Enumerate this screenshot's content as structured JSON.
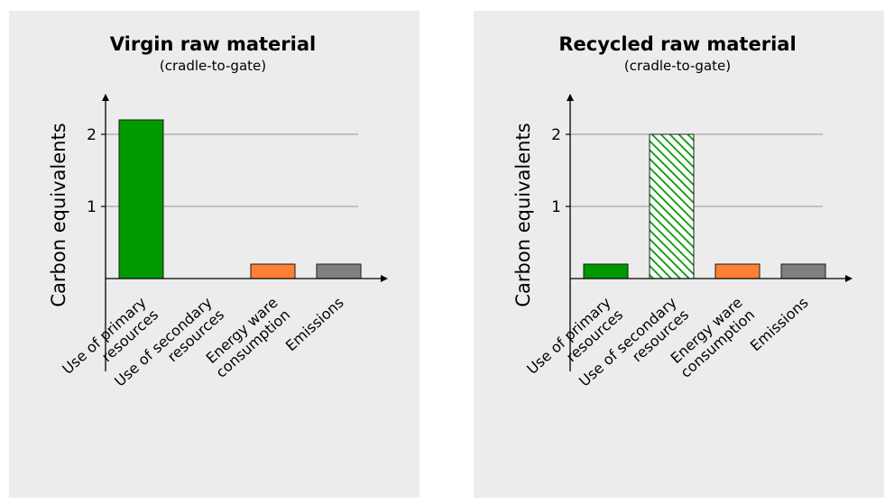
{
  "chart_data": [
    {
      "type": "bar",
      "title": "Virgin raw material",
      "subtitle": "(cradle-to-gate)",
      "ylabel": "Carbon equivalents",
      "xlabel": "",
      "yticks": [
        "1",
        "2"
      ],
      "ylim": [
        0,
        2.35
      ],
      "grid": true,
      "categories": [
        [
          "Use of primary",
          "resources"
        ],
        [
          "Use of secondary",
          "resources"
        ],
        [
          "Energy ware",
          "consumption"
        ],
        [
          "Emissions"
        ]
      ],
      "values": [
        2.2,
        0,
        0.2,
        0.2
      ],
      "bar_colors": [
        "#009900",
        "none",
        "#ff8033",
        "#808080"
      ],
      "bar_patterns": [
        "solid",
        "solid",
        "solid",
        "solid"
      ]
    },
    {
      "type": "bar",
      "title": "Recycled raw material",
      "subtitle": "(cradle-to-gate)",
      "ylabel": "Carbon equivalents",
      "xlabel": "",
      "yticks": [
        "1",
        "2"
      ],
      "ylim": [
        0,
        2.35
      ],
      "grid": true,
      "categories": [
        [
          "Use of primary",
          "resources"
        ],
        [
          "Use of secondary",
          "resources"
        ],
        [
          "Energy ware",
          "consumption"
        ],
        [
          "Emissions"
        ]
      ],
      "values": [
        0.2,
        2.0,
        0.2,
        0.2
      ],
      "bar_colors": [
        "#009900",
        "#009900",
        "#ff8033",
        "#808080"
      ],
      "bar_patterns": [
        "solid",
        "hatched",
        "solid",
        "solid"
      ]
    }
  ]
}
